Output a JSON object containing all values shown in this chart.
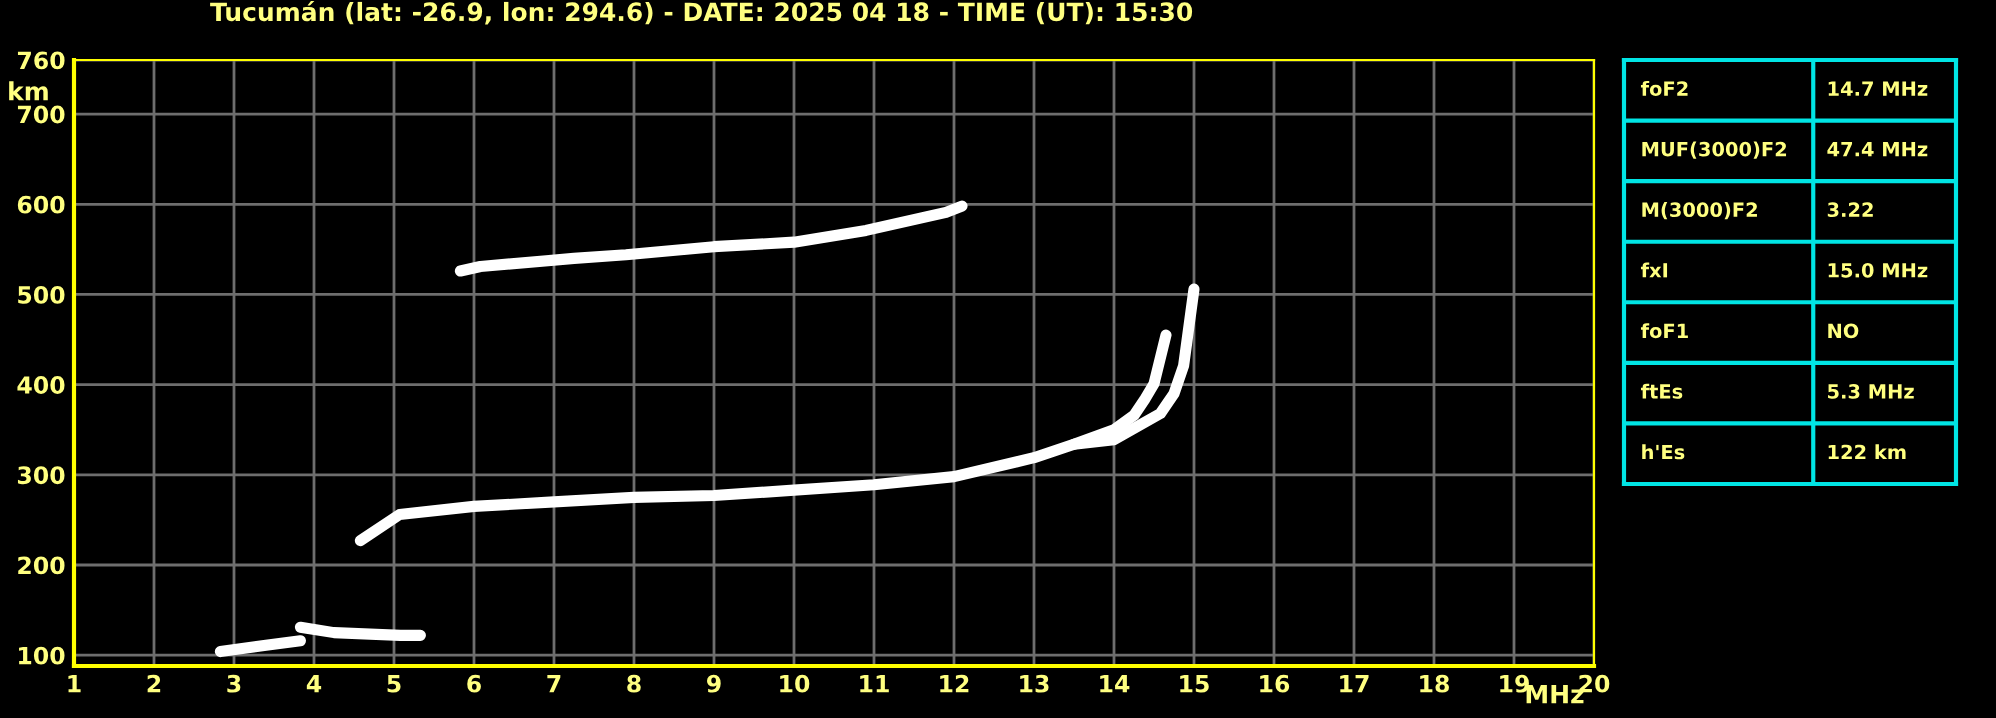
{
  "chart_data": [
    {
      "type": "line",
      "title": "Tucumán (lat: -26.9, lon: 294.6) - DATE: 2025 04 18 - TIME (UT): 15:30",
      "xlabel": "MHz",
      "ylabel": "km",
      "xlim": [
        1,
        20
      ],
      "ylim": [
        88,
        760
      ],
      "xticks": [
        1,
        2,
        3,
        4,
        5,
        6,
        7,
        8,
        9,
        10,
        11,
        12,
        13,
        14,
        15,
        16,
        17,
        18,
        19,
        20
      ],
      "yticks": [
        100,
        200,
        300,
        400,
        500,
        600,
        700,
        760
      ],
      "grid": true,
      "marker": "none",
      "line_style": "solid",
      "series": [
        {
          "color": "#ffffff",
          "x": [
            4.58,
            5.07,
            6,
            7,
            8,
            9,
            10,
            11,
            12,
            13,
            13.5,
            14,
            14.25,
            14.38,
            14.5,
            14.65
          ],
          "values": [
            227,
            256,
            265,
            270,
            275,
            277,
            283,
            289,
            298,
            319,
            334,
            350,
            366,
            383,
            401,
            455
          ]
        },
        {
          "color": "#ffffff",
          "x": [
            13.5,
            14,
            14.58,
            14.75,
            14.87,
            15.0
          ],
          "values": [
            334,
            339,
            368,
            390,
            421,
            506
          ]
        },
        {
          "color": "#ffffff",
          "x": [
            5.83,
            6.08,
            7.25,
            7.9,
            9.0,
            10.0,
            10.9,
            11.9,
            12.1
          ],
          "values": [
            526,
            531,
            540,
            544,
            553,
            558,
            571,
            591,
            598
          ]
        },
        {
          "color": "#ffffff",
          "x": [
            2.83,
            3.4,
            3.83
          ],
          "values": [
            104,
            111,
            116
          ]
        },
        {
          "color": "#ffffff",
          "x": [
            3.83,
            4.25,
            5.08,
            5.33
          ],
          "values": [
            131,
            125,
            122,
            122
          ]
        }
      ]
    },
    {
      "type": "other",
      "annotations": [
        "foF2",
        "14.7 MHz",
        "MUF(3000)F2",
        "47.4 MHz",
        "M(3000)F2",
        "3.22",
        "fxI",
        "15.0 MHz",
        "foF1",
        "NO",
        "ftEs",
        "5.3 MHz",
        "h'Es",
        "122 km"
      ]
    }
  ]
}
